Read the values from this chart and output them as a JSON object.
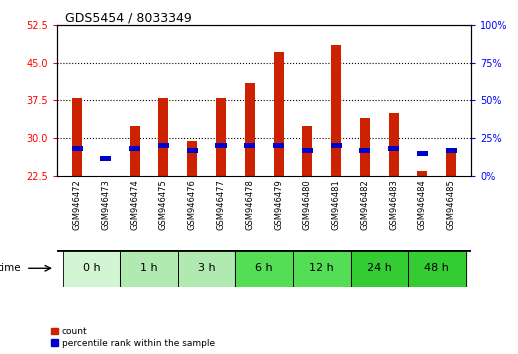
{
  "title": "GDS5454 / 8033349",
  "samples": [
    "GSM946472",
    "GSM946473",
    "GSM946474",
    "GSM946475",
    "GSM946476",
    "GSM946477",
    "GSM946478",
    "GSM946479",
    "GSM946480",
    "GSM946481",
    "GSM946482",
    "GSM946483",
    "GSM946484",
    "GSM946485"
  ],
  "count_values": [
    38.0,
    22.5,
    32.5,
    38.0,
    29.5,
    38.0,
    41.0,
    47.0,
    32.5,
    48.5,
    34.0,
    35.0,
    23.5,
    27.5
  ],
  "percentile_values": [
    28.0,
    26.0,
    28.0,
    28.5,
    27.5,
    28.5,
    28.5,
    28.5,
    27.5,
    28.5,
    27.5,
    28.0,
    27.0,
    27.5
  ],
  "time_groups": [
    {
      "label": "0 h",
      "indices": [
        0,
        1
      ],
      "color": "#d4f5d4"
    },
    {
      "label": "1 h",
      "indices": [
        2,
        3
      ],
      "color": "#b0eab0"
    },
    {
      "label": "3 h",
      "indices": [
        4,
        5
      ],
      "color": "#b0eab0"
    },
    {
      "label": "6 h",
      "indices": [
        6,
        7
      ],
      "color": "#55dd55"
    },
    {
      "label": "12 h",
      "indices": [
        8,
        9
      ],
      "color": "#55dd55"
    },
    {
      "label": "24 h",
      "indices": [
        10,
        11
      ],
      "color": "#33cc33"
    },
    {
      "label": "48 h",
      "indices": [
        12,
        13
      ],
      "color": "#33cc33"
    }
  ],
  "ylim_left": [
    22.5,
    52.5
  ],
  "ylim_right": [
    0,
    100
  ],
  "yticks_left": [
    22.5,
    30.0,
    37.5,
    45.0,
    52.5
  ],
  "yticks_right": [
    0,
    25,
    50,
    75,
    100
  ],
  "bar_color": "#cc2200",
  "percentile_color": "#0000cc",
  "background_color": "#ffffff",
  "bar_width": 0.35,
  "legend_count": "count",
  "legend_pct": "percentile rank within the sample",
  "xlabel": "time",
  "plot_bg": "#ffffff",
  "label_area_bg": "#d8d8d8",
  "title_fontsize": 9,
  "axis_label_fontsize": 7,
  "tick_label_fontsize": 6.5,
  "sample_label_fontsize": 6
}
